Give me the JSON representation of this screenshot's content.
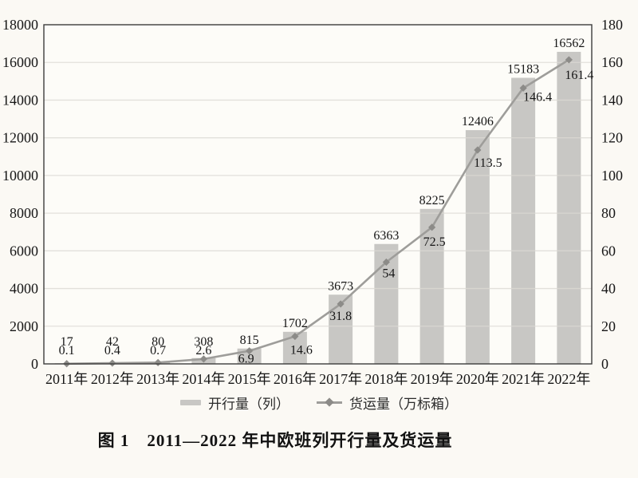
{
  "figure": {
    "caption": "图 1　2011—2022 年中欧班列开行量及货运量"
  },
  "chart_data": {
    "type": "bar",
    "subtype": "bar+line combo, dual axis",
    "title": "图 1　2011—2022 年中欧班列开行量及货运量",
    "categories": [
      "2011年",
      "2012年",
      "2013年",
      "2014年",
      "2015年",
      "2016年",
      "2017年",
      "2018年",
      "2019年",
      "2020年",
      "2021年",
      "2022年"
    ],
    "series": [
      {
        "name": "开行量（列）",
        "type": "bar",
        "axis": "left",
        "values": [
          17,
          42,
          80,
          308,
          815,
          1702,
          3673,
          6363,
          8225,
          12406,
          15183,
          16562
        ]
      },
      {
        "name": "货运量（万标箱）",
        "type": "line",
        "axis": "right",
        "values": [
          0.1,
          0.4,
          0.7,
          2.6,
          6.9,
          14.6,
          31.8,
          54,
          72.5,
          113.5,
          146.4,
          161.4
        ]
      }
    ],
    "left_axis": {
      "min": 0,
      "max": 18000,
      "step": 2000
    },
    "right_axis": {
      "min": 0,
      "max": 180,
      "step": 20
    },
    "grid": true,
    "legend_position": "bottom",
    "data_labels": true,
    "colors": {
      "bar": "#c8c7c4",
      "line": "#9e9d9a",
      "marker": "#8c8b88",
      "grid": "#dcdad4",
      "axis": "#3c3c3c",
      "text": "#161616",
      "background": "#fbf9f4",
      "plot_fill": "#fdfcf8"
    }
  }
}
